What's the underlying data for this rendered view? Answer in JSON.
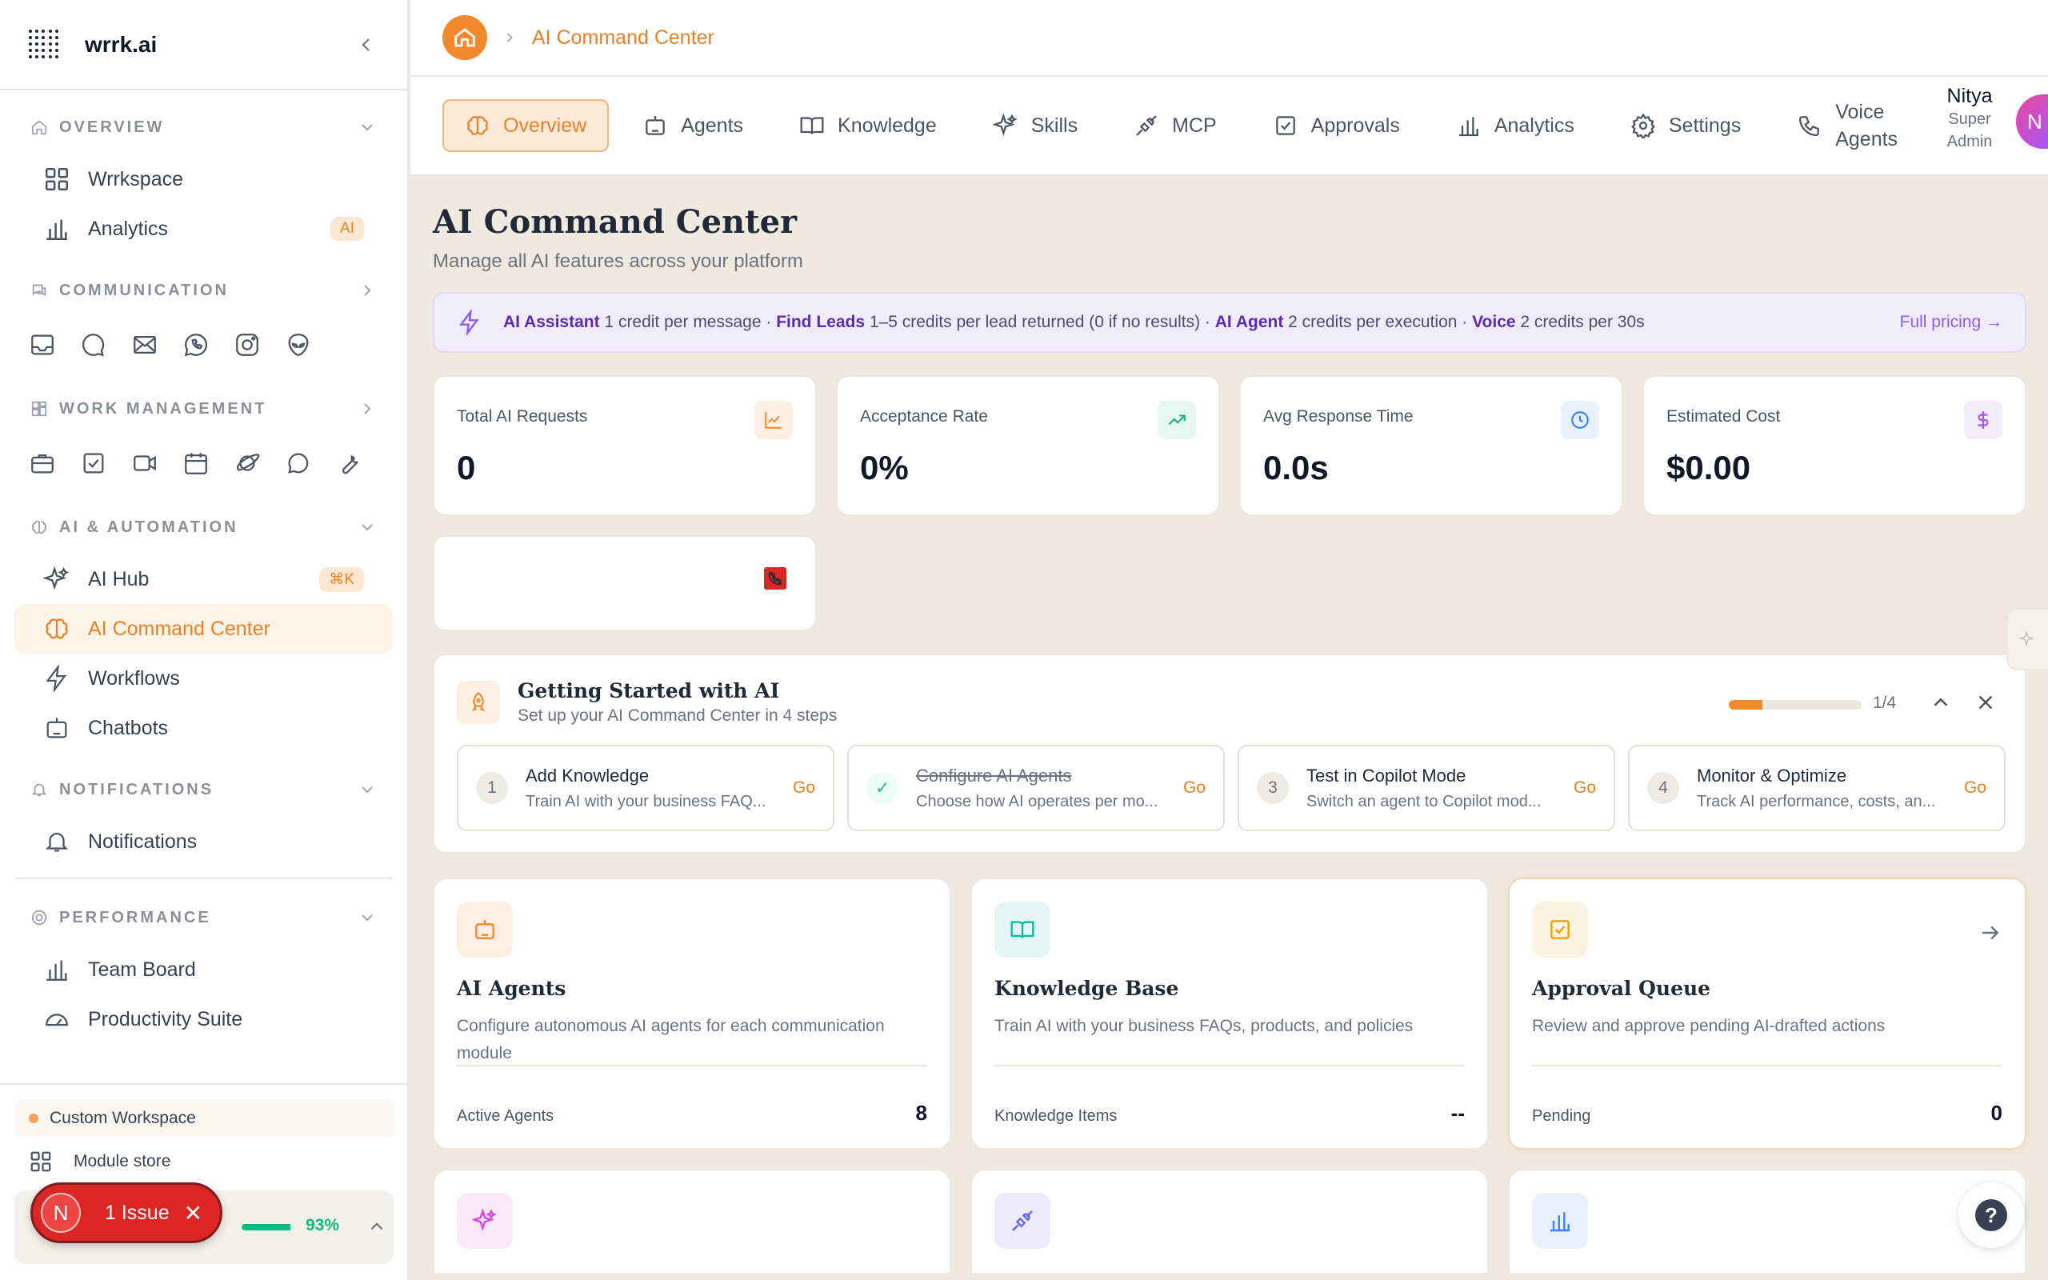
{
  "app": {
    "brand": "wrrk.ai"
  },
  "sidebar": {
    "sections": {
      "overview": "OVERVIEW",
      "communication": "COMMUNICATION",
      "work_management": "WORK MANAGEMENT",
      "ai_automation": "AI & AUTOMATION",
      "notifications": "NOTIFICATIONS",
      "performance": "PERFORMANCE"
    },
    "items": {
      "wrrkspace": "Wrrkspace",
      "analytics": "Analytics",
      "analytics_badge": "AI",
      "ai_hub": "AI Hub",
      "ai_hub_badge": "⌘K",
      "ai_command_center": "AI Command Center",
      "workflows": "Workflows",
      "chatbots": "Chatbots",
      "notifications": "Notifications",
      "team_board": "Team Board",
      "productivity_suite": "Productivity Suite"
    },
    "footer": {
      "custom_workspace": "Custom Workspace",
      "module_store": "Module store",
      "usage_pct": "93%",
      "usage_value": 0.93,
      "issue_avatar": "N",
      "issue_label": "1 Issue"
    }
  },
  "breadcrumb": {
    "current": "AI Command Center"
  },
  "tabs": [
    {
      "label": "Overview",
      "icon": "brain-icon"
    },
    {
      "label": "Agents",
      "icon": "bot-icon"
    },
    {
      "label": "Knowledge",
      "icon": "book-icon"
    },
    {
      "label": "Skills",
      "icon": "sparkles-icon"
    },
    {
      "label": "MCP",
      "icon": "plug-icon"
    },
    {
      "label": "Approvals",
      "icon": "check-square-icon"
    },
    {
      "label": "Analytics",
      "icon": "bar-chart-icon"
    },
    {
      "label": "Settings",
      "icon": "gear-icon"
    },
    {
      "label": "Voice Agents",
      "icon": "phone-icon"
    }
  ],
  "user": {
    "name": "Nitya",
    "role": "Super Admin",
    "initial": "N"
  },
  "page": {
    "title": "AI Command Center",
    "subtitle": "Manage all AI features across your platform"
  },
  "pricing": {
    "ai_assistant_label": "AI Assistant",
    "ai_assistant_text": " 1 credit per message · ",
    "find_leads_label": "Find Leads",
    "find_leads_text": " 1–5 credits per lead returned (0 if no results) · ",
    "ai_agent_label": "AI Agent",
    "ai_agent_text": " 2 credits per execution · ",
    "voice_label": "Voice",
    "voice_text": " 2 credits per 30s",
    "full_pricing": "Full pricing →"
  },
  "stats": [
    {
      "label": "Total AI Requests",
      "value": "0",
      "icon": "chart-area-icon",
      "color": "#f08a2c",
      "bg": "#fdf0e3"
    },
    {
      "label": "Acceptance Rate",
      "value": "0%",
      "icon": "trending-up-icon",
      "color": "#10b981",
      "bg": "#e6f7ef"
    },
    {
      "label": "Avg Response Time",
      "value": "0.0s",
      "icon": "clock-icon",
      "color": "#3b82f6",
      "bg": "#e8f0fd"
    },
    {
      "label": "Estimated Cost",
      "value": "$0.00",
      "icon": "dollar-icon",
      "color": "#a855f7",
      "bg": "#f4ebfd"
    }
  ],
  "getting_started": {
    "title": "Getting Started with AI",
    "subtitle": "Set up your AI Command Center in 4 steps",
    "progress": 0.25,
    "count": "1/4",
    "steps": [
      {
        "num": "1",
        "title": "Add Knowledge",
        "desc": "Train AI with your business FAQ...",
        "go": "Go",
        "done": false
      },
      {
        "num": "✓",
        "title": "Configure AI Agents",
        "desc": "Choose how AI operates per mo...",
        "go": "Go",
        "done": true
      },
      {
        "num": "3",
        "title": "Test in Copilot Mode",
        "desc": "Switch an agent to Copilot mod...",
        "go": "Go",
        "done": false
      },
      {
        "num": "4",
        "title": "Monitor & Optimize",
        "desc": "Track AI performance, costs, an...",
        "go": "Go",
        "done": false
      }
    ]
  },
  "cards": [
    {
      "title": "AI Agents",
      "desc": "Configure autonomous AI agents for each communication module",
      "foot_label": "Active Agents",
      "foot_value": "8",
      "icon": "bot-icon",
      "color": "#f08a2c",
      "bg": "#fdf0e3"
    },
    {
      "title": "Knowledge Base",
      "desc": "Train AI with your business FAQs, products, and policies",
      "foot_label": "Knowledge Items",
      "foot_value": "--",
      "icon": "book-open-icon",
      "color": "#14b8a6",
      "bg": "#e3f6f3"
    },
    {
      "title": "Approval Queue",
      "desc": "Review and approve pending AI-drafted actions",
      "foot_label": "Pending",
      "foot_value": "0",
      "icon": "check-square-icon",
      "color": "#f59e0b",
      "bg": "#fdf3e1"
    }
  ],
  "colors": {
    "accent": "#f08a2c",
    "sidebar_active_bg": "#fef3e7",
    "page_bg": "#efe9e0",
    "issue_red": "#dc2626"
  }
}
